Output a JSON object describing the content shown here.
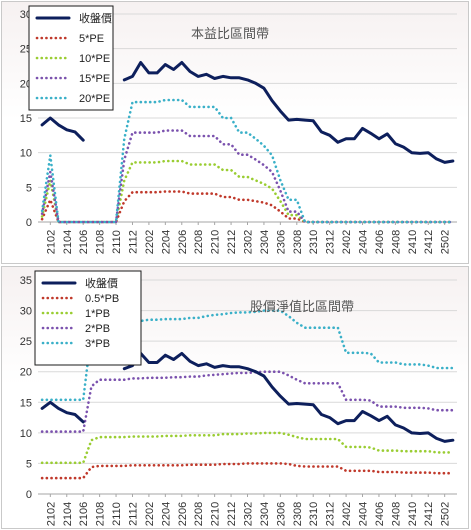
{
  "chart_data": [
    {
      "type": "line",
      "title": "本益比區間帶",
      "x_tick_labels": [
        "2102",
        "2104",
        "2106",
        "2108",
        "2110",
        "2112",
        "2202",
        "2204",
        "2206",
        "2208",
        "2210",
        "2212",
        "2302",
        "2304",
        "2306",
        "2308",
        "2310",
        "2312",
        "2402",
        "2404",
        "2406",
        "2408",
        "2410",
        "2412",
        "2502"
      ],
      "x": [
        "2101",
        "2102",
        "2103",
        "2104",
        "2105",
        "2106",
        "2107",
        "2108",
        "2109",
        "2110",
        "2111",
        "2112",
        "2201",
        "2202",
        "2203",
        "2204",
        "2205",
        "2206",
        "2207",
        "2208",
        "2209",
        "2210",
        "2211",
        "2212",
        "2301",
        "2302",
        "2303",
        "2304",
        "2305",
        "2306",
        "2307",
        "2308",
        "2309",
        "2310",
        "2311",
        "2312",
        "2401",
        "2402",
        "2403",
        "2404",
        "2405",
        "2406",
        "2407",
        "2408",
        "2409",
        "2410",
        "2411",
        "2412",
        "2501",
        "2502",
        "2503"
      ],
      "ylim": [
        0,
        30
      ],
      "y_ticks": [
        0,
        5,
        10,
        15,
        20,
        25,
        30
      ],
      "grid": true,
      "legend_position": "top-left",
      "series": [
        {
          "name": "收盤價",
          "color": "#0d1f5c",
          "style": "solid",
          "values": [
            14.0,
            15.0,
            14.0,
            13.3,
            13.0,
            11.8,
            null,
            null,
            null,
            null,
            20.5,
            21.0,
            23.0,
            21.5,
            21.5,
            22.7,
            22.0,
            23.0,
            21.7,
            21.0,
            21.3,
            20.7,
            21.0,
            20.8,
            20.8,
            20.5,
            20.0,
            19.3,
            17.5,
            16.0,
            14.7,
            14.8,
            14.7,
            14.6,
            13.0,
            12.5,
            11.5,
            12.0,
            12.0,
            13.5,
            12.8,
            12.0,
            12.7,
            11.3,
            10.8,
            10.0,
            9.9,
            10.0,
            9.1,
            8.6,
            8.8
          ]
        },
        {
          "name": "5*PE",
          "color": "#c0392b",
          "style": "dotted",
          "values": [
            0.4,
            3.2,
            0,
            0,
            0,
            0,
            0,
            0,
            0,
            0,
            3.0,
            4.3,
            4.3,
            4.3,
            4.3,
            4.4,
            4.4,
            4.4,
            4.1,
            4.1,
            4.1,
            4.1,
            3.6,
            3.6,
            3.2,
            3.2,
            3.0,
            2.8,
            2.4,
            1.5,
            0.5,
            0.5,
            0,
            0,
            0,
            0,
            0,
            0,
            0,
            0,
            0,
            0,
            0,
            0,
            0,
            0,
            0,
            0,
            0,
            0,
            0
          ]
        },
        {
          "name": "10*PE",
          "color": "#9acd32",
          "style": "dotted",
          "values": [
            0.8,
            6.0,
            0,
            0,
            0,
            0,
            0,
            0,
            0,
            0,
            6.0,
            8.6,
            8.6,
            8.6,
            8.6,
            8.8,
            8.8,
            8.8,
            8.3,
            8.3,
            8.3,
            8.3,
            7.5,
            7.5,
            6.5,
            6.5,
            6.0,
            5.5,
            4.8,
            3.0,
            1.0,
            1.0,
            0,
            0,
            0,
            0,
            0,
            0,
            0,
            0,
            0,
            0,
            0,
            0,
            0,
            0,
            0,
            0,
            0,
            0,
            0
          ]
        },
        {
          "name": "15*PE",
          "color": "#7b52ae",
          "style": "dotted",
          "values": [
            1.2,
            7.2,
            0,
            0,
            0,
            0,
            0,
            0,
            0,
            0,
            9.0,
            12.9,
            12.9,
            12.9,
            12.9,
            13.2,
            13.2,
            13.2,
            12.4,
            12.4,
            12.4,
            12.4,
            11.2,
            11.2,
            9.7,
            9.7,
            9.0,
            8.2,
            7.2,
            4.5,
            1.5,
            1.5,
            0,
            0,
            0,
            0,
            0,
            0,
            0,
            0,
            0,
            0,
            0,
            0,
            0,
            0,
            0,
            0,
            0,
            0,
            0
          ]
        },
        {
          "name": "20*PE",
          "color": "#3ab0c8",
          "style": "dotted",
          "values": [
            1.6,
            9.6,
            0,
            0,
            0,
            0,
            0,
            0,
            0,
            0,
            12.0,
            17.3,
            17.3,
            17.3,
            17.3,
            17.6,
            17.6,
            17.6,
            16.6,
            16.6,
            16.6,
            16.6,
            15.0,
            15.0,
            12.9,
            12.9,
            12.0,
            11.0,
            9.6,
            6.0,
            3.2,
            3.2,
            0,
            0,
            0,
            0,
            0,
            0,
            0,
            0,
            0,
            0,
            0,
            0,
            0,
            0,
            0,
            0,
            0,
            0,
            0
          ]
        }
      ]
    },
    {
      "type": "line",
      "title": "股價淨值比區間帶",
      "x_tick_labels": [
        "2102",
        "2104",
        "2106",
        "2108",
        "2110",
        "2112",
        "2202",
        "2204",
        "2206",
        "2208",
        "2210",
        "2212",
        "2302",
        "2304",
        "2306",
        "2308",
        "2310",
        "2312",
        "2402",
        "2404",
        "2406",
        "2408",
        "2410",
        "2412",
        "2502"
      ],
      "x": [
        "2101",
        "2102",
        "2103",
        "2104",
        "2105",
        "2106",
        "2107",
        "2108",
        "2109",
        "2110",
        "2111",
        "2112",
        "2201",
        "2202",
        "2203",
        "2204",
        "2205",
        "2206",
        "2207",
        "2208",
        "2209",
        "2210",
        "2211",
        "2212",
        "2301",
        "2302",
        "2303",
        "2304",
        "2305",
        "2306",
        "2307",
        "2308",
        "2309",
        "2310",
        "2311",
        "2312",
        "2401",
        "2402",
        "2403",
        "2404",
        "2405",
        "2406",
        "2407",
        "2408",
        "2409",
        "2410",
        "2411",
        "2412",
        "2501",
        "2502",
        "2503"
      ],
      "ylim": [
        0,
        35
      ],
      "y_ticks": [
        0,
        5,
        10,
        15,
        20,
        25,
        30,
        35
      ],
      "grid": true,
      "legend_position": "top-left",
      "series": [
        {
          "name": "收盤價",
          "color": "#0d1f5c",
          "style": "solid",
          "values": [
            14.0,
            15.0,
            14.0,
            13.3,
            13.0,
            11.8,
            null,
            null,
            null,
            null,
            20.5,
            21.0,
            23.0,
            21.5,
            21.5,
            22.7,
            22.0,
            23.0,
            21.7,
            21.0,
            21.3,
            20.7,
            21.0,
            20.8,
            20.8,
            20.5,
            20.0,
            19.3,
            17.5,
            16.0,
            14.7,
            14.8,
            14.7,
            14.6,
            13.0,
            12.5,
            11.5,
            12.0,
            12.0,
            13.5,
            12.8,
            12.0,
            12.7,
            11.3,
            10.8,
            10.0,
            9.9,
            10.0,
            9.1,
            8.6,
            8.8
          ]
        },
        {
          "name": "0.5*PB",
          "color": "#c0392b",
          "style": "dotted",
          "values": [
            2.6,
            2.6,
            2.6,
            2.6,
            2.6,
            2.6,
            4.4,
            4.6,
            4.6,
            4.6,
            4.6,
            4.7,
            4.7,
            4.7,
            4.7,
            4.7,
            4.7,
            4.7,
            4.8,
            4.8,
            4.8,
            4.8,
            4.9,
            4.9,
            4.9,
            5.0,
            5.0,
            5.0,
            5.0,
            5.0,
            4.9,
            4.6,
            4.5,
            4.5,
            4.5,
            4.5,
            4.5,
            3.8,
            3.8,
            3.8,
            3.8,
            3.6,
            3.6,
            3.6,
            3.5,
            3.5,
            3.5,
            3.5,
            3.4,
            3.4,
            3.4
          ]
        },
        {
          "name": "1*PB",
          "color": "#9acd32",
          "style": "dotted",
          "values": [
            5.1,
            5.1,
            5.1,
            5.1,
            5.1,
            5.1,
            8.8,
            9.3,
            9.3,
            9.3,
            9.3,
            9.4,
            9.4,
            9.4,
            9.4,
            9.5,
            9.5,
            9.5,
            9.6,
            9.6,
            9.6,
            9.6,
            9.8,
            9.8,
            9.8,
            9.9,
            9.9,
            10.0,
            10.0,
            10.0,
            9.7,
            9.3,
            9.0,
            9.0,
            9.0,
            9.0,
            9.0,
            7.7,
            7.7,
            7.7,
            7.6,
            7.1,
            7.1,
            7.1,
            7.0,
            7.0,
            7.0,
            7.0,
            6.8,
            6.8,
            6.8
          ]
        },
        {
          "name": "2*PB",
          "color": "#7b52ae",
          "style": "dotted",
          "values": [
            10.2,
            10.2,
            10.2,
            10.2,
            10.2,
            10.2,
            17.6,
            18.7,
            18.7,
            18.7,
            18.7,
            18.9,
            18.9,
            19.0,
            19.0,
            19.0,
            19.1,
            19.1,
            19.2,
            19.2,
            19.4,
            19.5,
            19.6,
            19.7,
            19.8,
            19.8,
            19.9,
            20.0,
            20.0,
            20.0,
            19.4,
            18.7,
            18.1,
            18.1,
            18.1,
            18.1,
            18.1,
            15.4,
            15.4,
            15.4,
            15.3,
            14.3,
            14.3,
            14.3,
            14.1,
            14.1,
            14.1,
            14.0,
            13.7,
            13.7,
            13.7
          ]
        },
        {
          "name": "3*PB",
          "color": "#3ab0c8",
          "style": "dotted",
          "values": [
            15.4,
            15.4,
            15.4,
            15.4,
            15.4,
            15.4,
            26.4,
            28.0,
            28.0,
            28.0,
            28.0,
            28.3,
            28.3,
            28.5,
            28.5,
            28.6,
            28.6,
            28.6,
            28.8,
            28.8,
            29.1,
            29.3,
            29.4,
            29.6,
            29.7,
            29.7,
            29.8,
            30.0,
            30.0,
            30.0,
            29.1,
            28.0,
            27.2,
            27.2,
            27.2,
            27.2,
            27.2,
            23.1,
            23.1,
            23.1,
            23.0,
            21.5,
            21.5,
            21.5,
            21.2,
            21.2,
            21.2,
            21.0,
            20.6,
            20.6,
            20.6
          ]
        }
      ]
    }
  ]
}
